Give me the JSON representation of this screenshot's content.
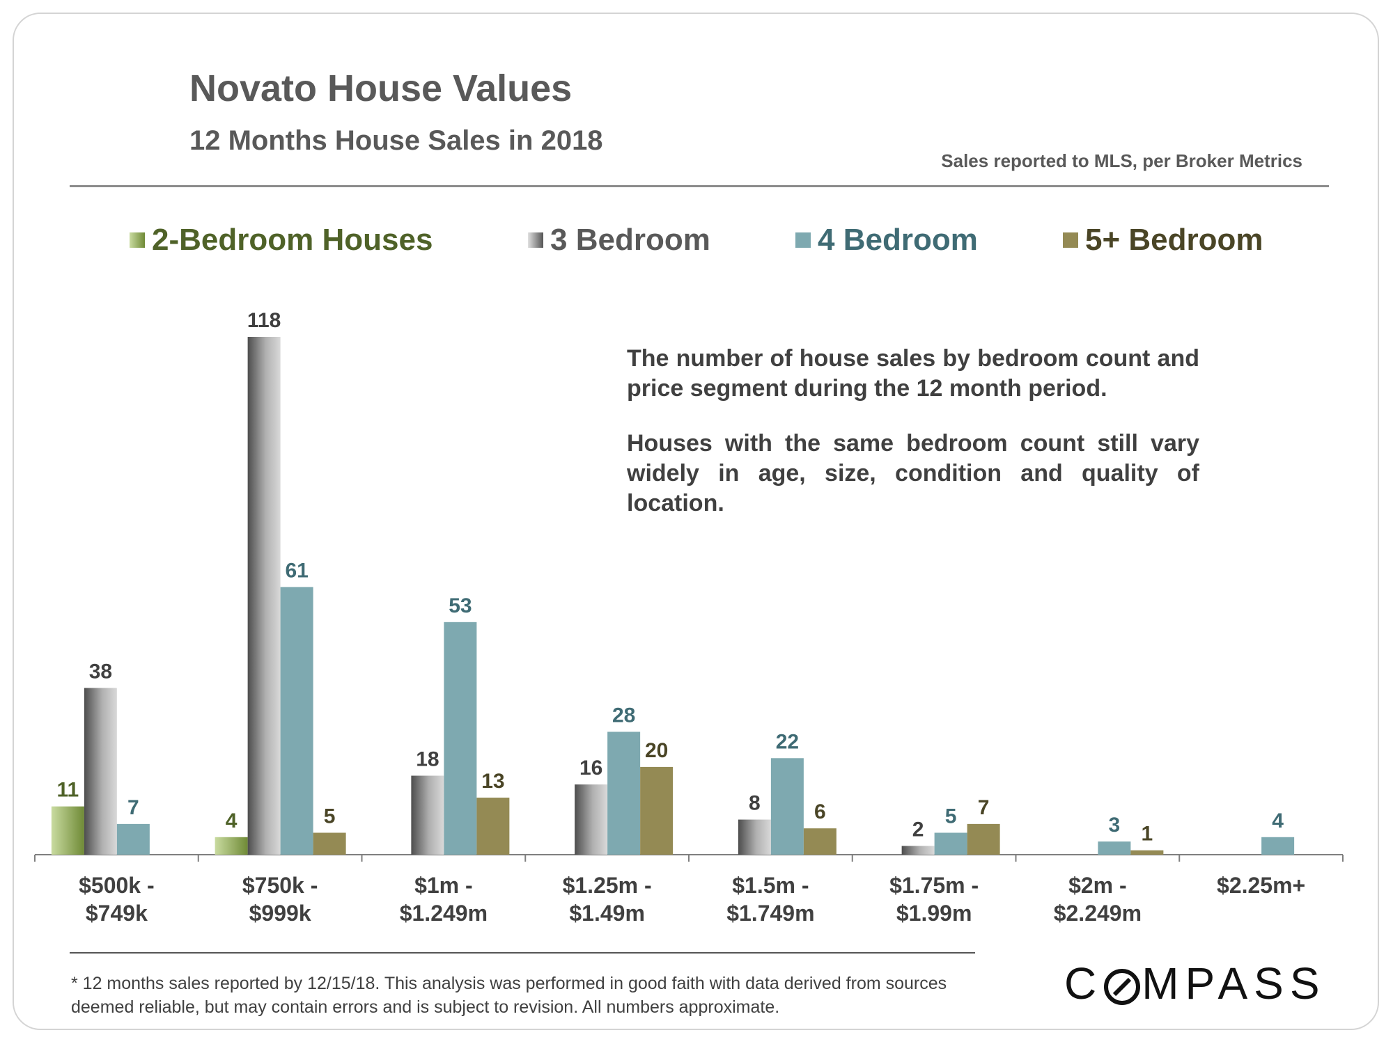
{
  "title": "Novato House Values",
  "subtitle": "12 Months House Sales in 2018",
  "source_note": "Sales reported to MLS, per Broker Metrics",
  "description": [
    "The number of house sales by bedroom count and price segment during the 12 month period.",
    "Houses with the same bedroom count still vary widely in age, size, condition and quality of location."
  ],
  "footnote": "* 12 months sales reported by 12/15/18. This analysis was performed in good faith with data derived from sources deemed reliable, but may contain errors and is subject to revision. All numbers approximate.",
  "logo": {
    "before": "C",
    "after": "MPASS",
    "full": "COMPASS"
  },
  "chart_data": {
    "type": "bar",
    "title": "Novato House Values",
    "xlabel": "",
    "ylabel": "",
    "ylim": [
      0,
      118
    ],
    "grid": false,
    "legend_position": "top",
    "categories": [
      [
        "$500k -",
        "$749k"
      ],
      [
        "$750k -",
        "$999k"
      ],
      [
        "$1m -",
        "$1.249m"
      ],
      [
        "$1.25m -",
        "$1.49m"
      ],
      [
        "$1.5m -",
        "$1.749m"
      ],
      [
        "$1.75m -",
        "$1.99m"
      ],
      [
        "$2m -",
        "$2.249m"
      ],
      [
        "$2.25m+"
      ]
    ],
    "series": [
      {
        "name": "2-Bedroom Houses",
        "color": "#8fa65a",
        "label_color": "#4f6228",
        "values": [
          11,
          4,
          null,
          null,
          null,
          null,
          null,
          null
        ]
      },
      {
        "name": "3 Bedroom",
        "color": "#8c8c8c",
        "label_color": "#404040",
        "values": [
          38,
          118,
          18,
          16,
          8,
          2,
          null,
          null
        ]
      },
      {
        "name": "4 Bedroom",
        "color": "#7ea9b0",
        "label_color": "#3f6b74",
        "values": [
          7,
          61,
          53,
          28,
          22,
          5,
          3,
          4
        ]
      },
      {
        "name": "5+ Bedroom",
        "color": "#948a54",
        "label_color": "#4a4526",
        "values": [
          null,
          5,
          13,
          20,
          6,
          7,
          1,
          null
        ]
      }
    ]
  }
}
